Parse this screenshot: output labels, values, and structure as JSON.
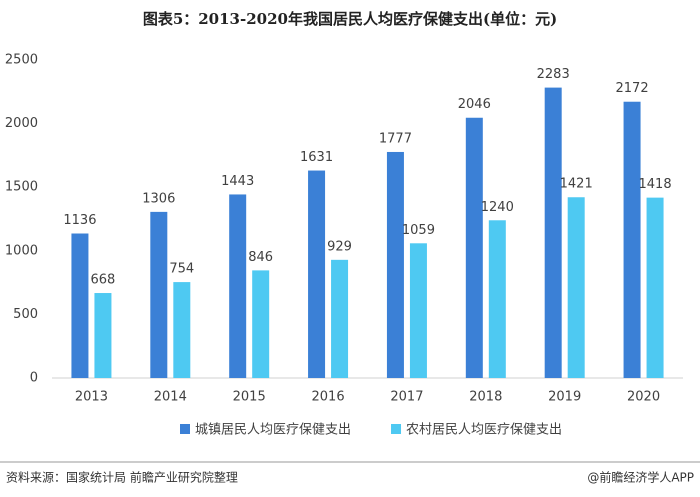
{
  "chart_data": {
    "type": "bar",
    "title": "图表5：2013-2020年我国居民人均医疗保健支出(单位：元)",
    "categories": [
      "2013",
      "2014",
      "2015",
      "2016",
      "2017",
      "2018",
      "2019",
      "2020"
    ],
    "series": [
      {
        "name": "城镇居民人均医疗保健支出",
        "color": "#3b80d6",
        "values": [
          1136,
          1306,
          1443,
          1631,
          1777,
          2046,
          2283,
          2172
        ]
      },
      {
        "name": "农村居民人均医疗保健支出",
        "color": "#4ec9f2",
        "values": [
          668,
          754,
          846,
          929,
          1059,
          1240,
          1421,
          1418
        ]
      }
    ],
    "ylim": [
      0,
      2500
    ],
    "yticks": [
      0,
      500,
      1000,
      1500,
      2000,
      2500
    ],
    "grid": false,
    "legend": "bottom",
    "source": "资料来源：国家统计局 前瞻产业研究院整理",
    "credit": "@前瞻经济学人APP"
  }
}
